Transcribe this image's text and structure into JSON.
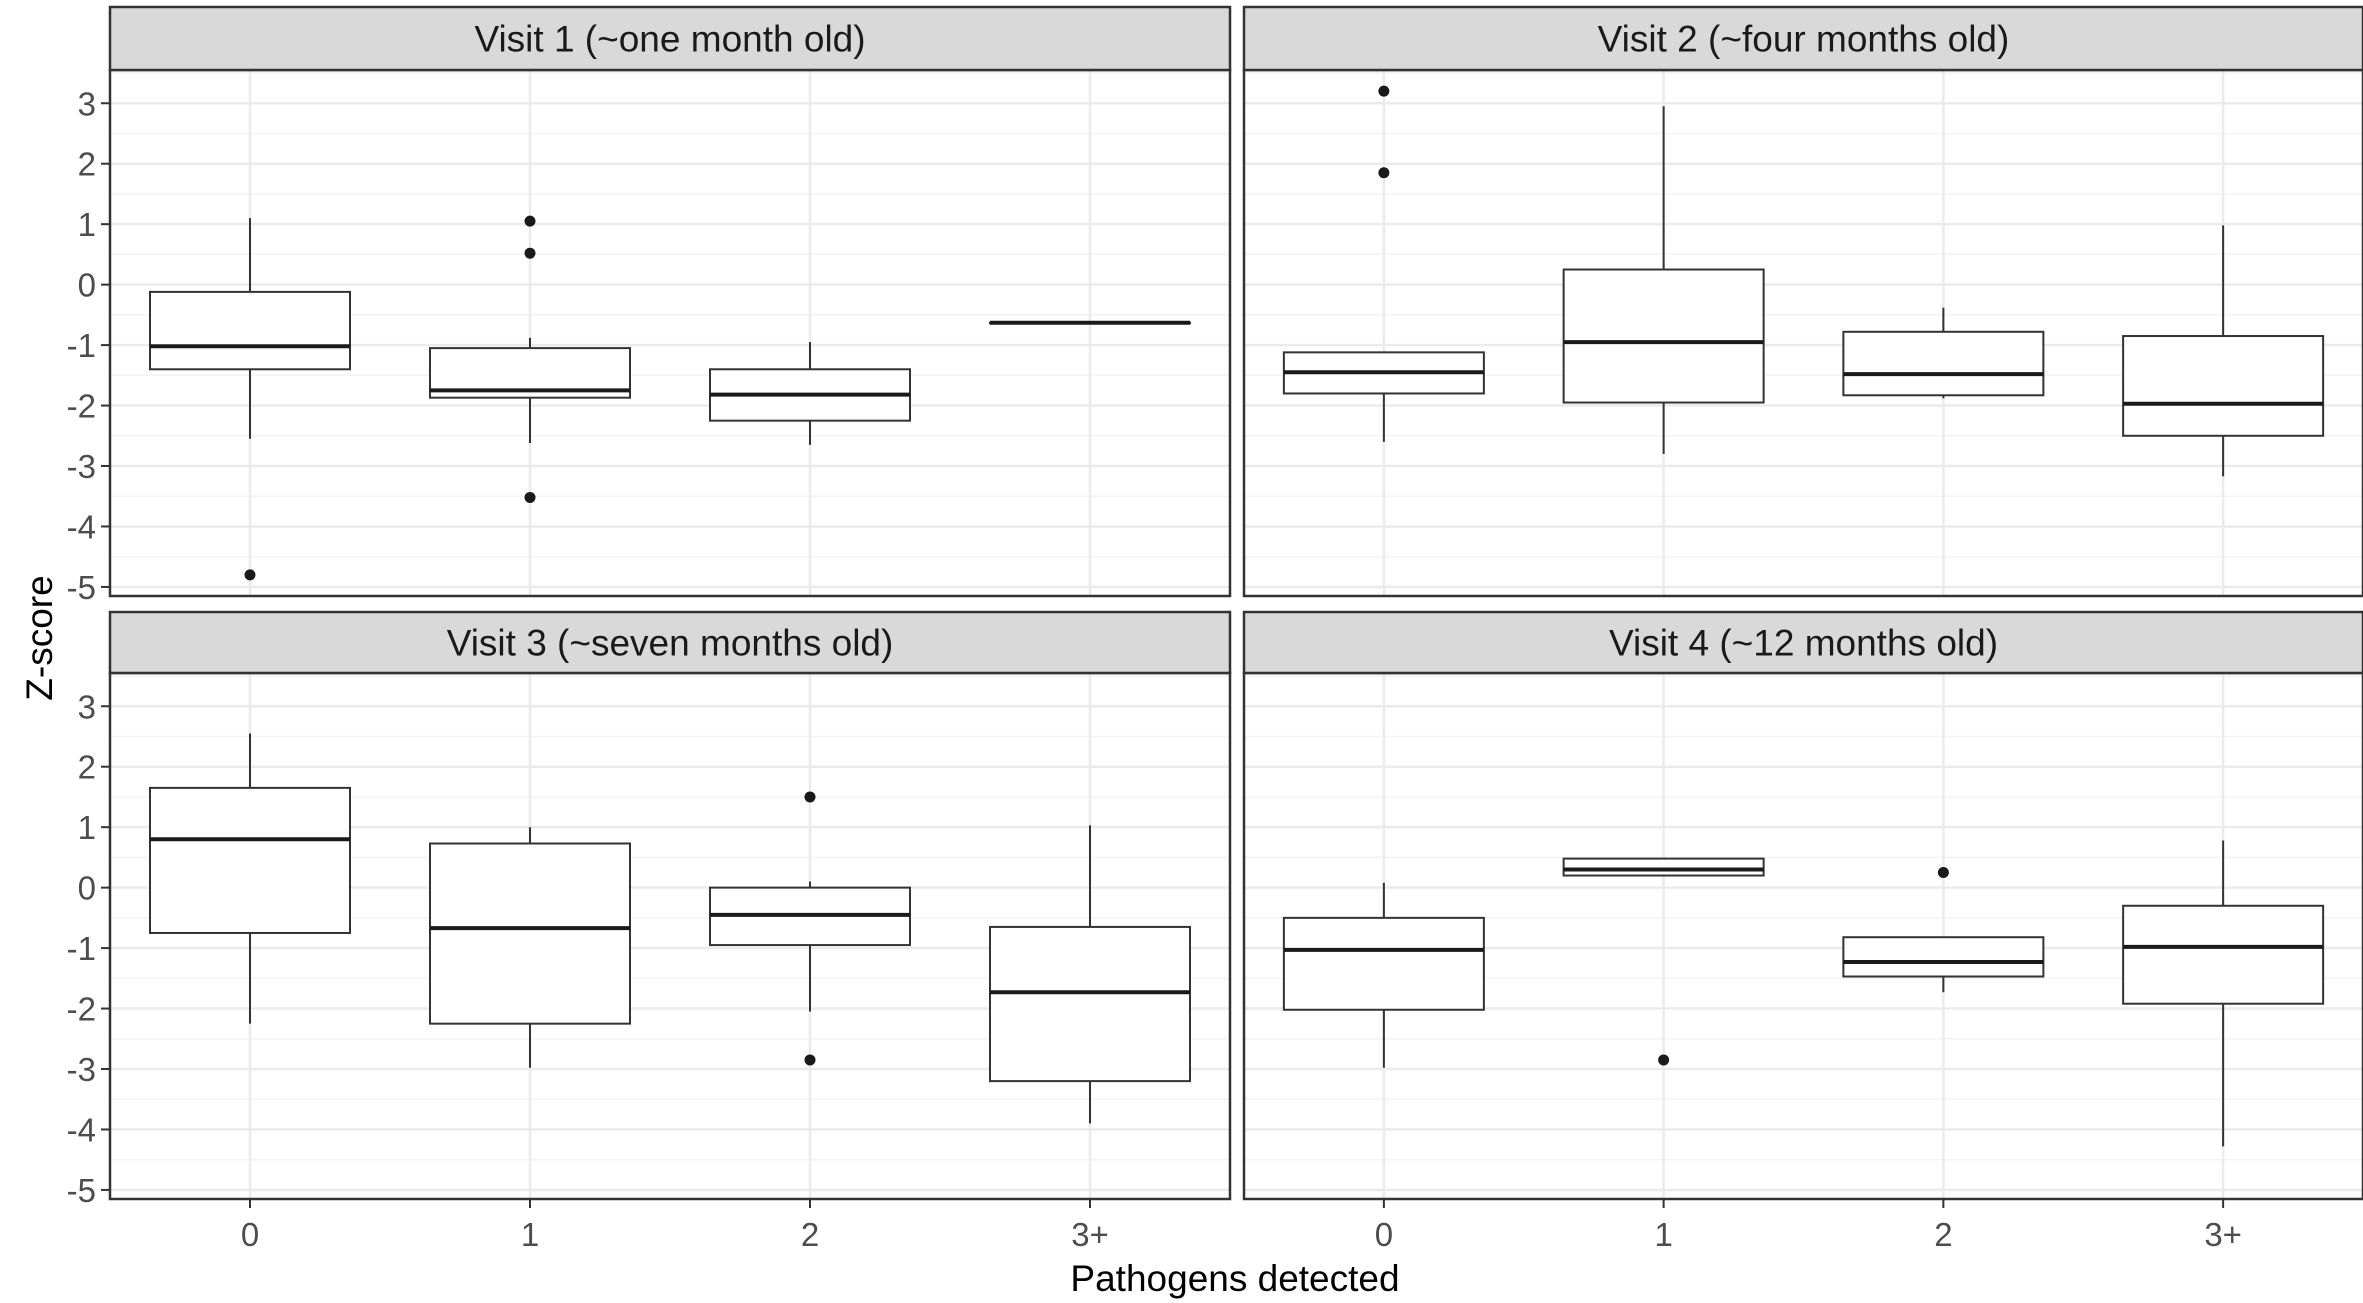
{
  "chart_data": {
    "type": "boxplot",
    "xlabel": "Pathogens detected",
    "ylabel": "Z-score",
    "categories": [
      "0",
      "1",
      "2",
      "3+"
    ],
    "y_ticks": [
      -5,
      -4,
      -3,
      -2,
      -1,
      0,
      1,
      2,
      3
    ],
    "ylim": [
      -5.15,
      3.55
    ],
    "grid": true,
    "colors": {
      "strip_fill": "#d9d9d9",
      "panel_border": "#333333",
      "grid_major": "#ebebeb",
      "grid_minor": "#f3f3f3",
      "box_line": "#333333",
      "outlier": "#1a1a1a"
    },
    "panels": [
      {
        "title": "Visit 1 (~one month old)",
        "boxes": [
          {
            "category": "0",
            "lower_whisker": -2.55,
            "q1": -1.4,
            "median": -1.02,
            "q3": -0.12,
            "upper_whisker": 1.1,
            "outliers": [
              -4.8
            ]
          },
          {
            "category": "1",
            "lower_whisker": -2.62,
            "q1": -1.87,
            "median": -1.75,
            "q3": -1.05,
            "upper_whisker": -0.88,
            "outliers": [
              1.05,
              0.52,
              -3.52
            ]
          },
          {
            "category": "2",
            "lower_whisker": -2.65,
            "q1": -2.25,
            "median": -1.82,
            "q3": -1.4,
            "upper_whisker": -0.95,
            "outliers": []
          },
          {
            "category": "3+",
            "lower_whisker": -0.63,
            "q1": -0.63,
            "median": -0.63,
            "q3": -0.63,
            "upper_whisker": -0.63,
            "outliers": []
          }
        ]
      },
      {
        "title": "Visit 2 (~four months old)",
        "boxes": [
          {
            "category": "0",
            "lower_whisker": -2.6,
            "q1": -1.8,
            "median": -1.45,
            "q3": -1.12,
            "upper_whisker": -1.12,
            "outliers": [
              3.2,
              1.85
            ]
          },
          {
            "category": "1",
            "lower_whisker": -2.8,
            "q1": -1.95,
            "median": -0.95,
            "q3": 0.25,
            "upper_whisker": 2.95,
            "outliers": []
          },
          {
            "category": "2",
            "lower_whisker": -1.88,
            "q1": -1.83,
            "median": -1.48,
            "q3": -0.78,
            "upper_whisker": -0.38,
            "outliers": []
          },
          {
            "category": "3+",
            "lower_whisker": -3.17,
            "q1": -2.5,
            "median": -1.97,
            "q3": -0.85,
            "upper_whisker": 0.98,
            "outliers": []
          }
        ]
      },
      {
        "title": "Visit 3 (~seven months old)",
        "boxes": [
          {
            "category": "0",
            "lower_whisker": -2.25,
            "q1": -0.75,
            "median": 0.8,
            "q3": 1.65,
            "upper_whisker": 2.55,
            "outliers": []
          },
          {
            "category": "1",
            "lower_whisker": -2.98,
            "q1": -2.25,
            "median": -0.67,
            "q3": 0.73,
            "upper_whisker": 1.0,
            "outliers": []
          },
          {
            "category": "2",
            "lower_whisker": -2.05,
            "q1": -0.95,
            "median": -0.45,
            "q3": 0.0,
            "upper_whisker": 0.1,
            "outliers": [
              1.5,
              -2.85
            ]
          },
          {
            "category": "3+",
            "lower_whisker": -3.9,
            "q1": -3.2,
            "median": -1.73,
            "q3": -0.65,
            "upper_whisker": 1.03,
            "outliers": []
          }
        ]
      },
      {
        "title": "Visit 4 (~12 months old)",
        "boxes": [
          {
            "category": "0",
            "lower_whisker": -2.98,
            "q1": -2.02,
            "median": -1.03,
            "q3": -0.5,
            "upper_whisker": 0.08,
            "outliers": []
          },
          {
            "category": "1",
            "lower_whisker": 0.2,
            "q1": 0.2,
            "median": 0.3,
            "q3": 0.48,
            "upper_whisker": 0.48,
            "outliers": [
              -2.85
            ]
          },
          {
            "category": "2",
            "lower_whisker": -1.73,
            "q1": -1.47,
            "median": -1.23,
            "q3": -0.82,
            "upper_whisker": -0.82,
            "outliers": [
              0.25
            ]
          },
          {
            "category": "3+",
            "lower_whisker": -4.28,
            "q1": -1.92,
            "median": -0.98,
            "q3": -0.3,
            "upper_whisker": 0.78,
            "outliers": []
          }
        ]
      }
    ]
  }
}
